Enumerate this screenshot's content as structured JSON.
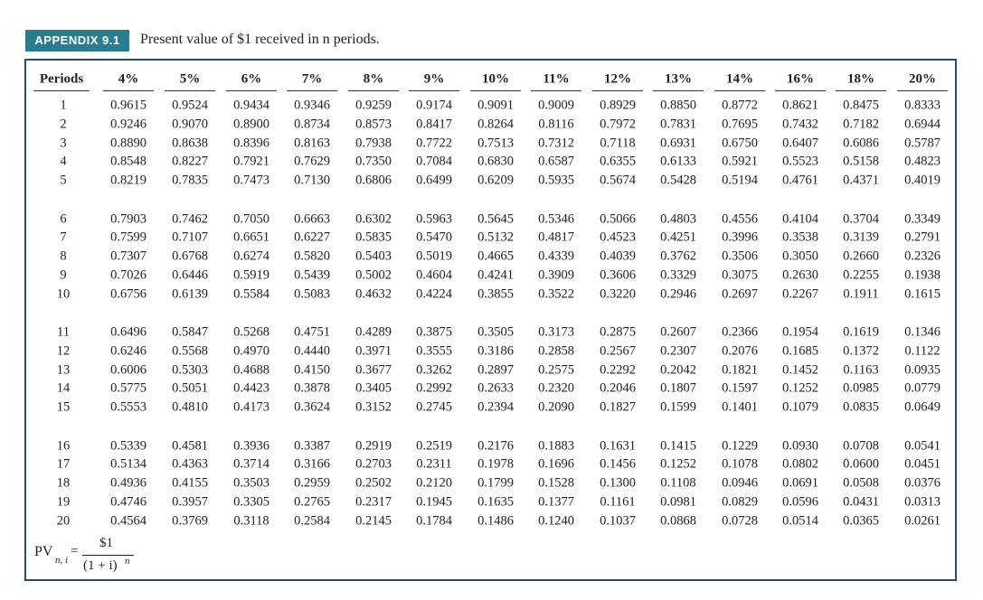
{
  "header": {
    "label": "APPENDIX 9.1",
    "title": "Present value of $1 received in n periods."
  },
  "table": {
    "columns": [
      "Periods",
      "4%",
      "5%",
      "6%",
      "7%",
      "8%",
      "9%",
      "10%",
      "11%",
      "12%",
      "13%",
      "14%",
      "16%",
      "18%",
      "20%"
    ],
    "rows": [
      [
        "1",
        "0.9615",
        "0.9524",
        "0.9434",
        "0.9346",
        "0.9259",
        "0.9174",
        "0.9091",
        "0.9009",
        "0.8929",
        "0.8850",
        "0.8772",
        "0.8621",
        "0.8475",
        "0.8333"
      ],
      [
        "2",
        "0.9246",
        "0.9070",
        "0.8900",
        "0.8734",
        "0.8573",
        "0.8417",
        "0.8264",
        "0.8116",
        "0.7972",
        "0.7831",
        "0.7695",
        "0.7432",
        "0.7182",
        "0.6944"
      ],
      [
        "3",
        "0.8890",
        "0.8638",
        "0.8396",
        "0.8163",
        "0.7938",
        "0.7722",
        "0.7513",
        "0.7312",
        "0.7118",
        "0.6931",
        "0.6750",
        "0.6407",
        "0.6086",
        "0.5787"
      ],
      [
        "4",
        "0.8548",
        "0.8227",
        "0.7921",
        "0.7629",
        "0.7350",
        "0.7084",
        "0.6830",
        "0.6587",
        "0.6355",
        "0.6133",
        "0.5921",
        "0.5523",
        "0.5158",
        "0.4823"
      ],
      [
        "5",
        "0.8219",
        "0.7835",
        "0.7473",
        "0.7130",
        "0.6806",
        "0.6499",
        "0.6209",
        "0.5935",
        "0.5674",
        "0.5428",
        "0.5194",
        "0.4761",
        "0.4371",
        "0.4019"
      ],
      [
        "6",
        "0.7903",
        "0.7462",
        "0.7050",
        "0.6663",
        "0.6302",
        "0.5963",
        "0.5645",
        "0.5346",
        "0.5066",
        "0.4803",
        "0.4556",
        "0.4104",
        "0.3704",
        "0.3349"
      ],
      [
        "7",
        "0.7599",
        "0.7107",
        "0.6651",
        "0.6227",
        "0.5835",
        "0.5470",
        "0.5132",
        "0.4817",
        "0.4523",
        "0.4251",
        "0.3996",
        "0.3538",
        "0.3139",
        "0.2791"
      ],
      [
        "8",
        "0.7307",
        "0.6768",
        "0.6274",
        "0.5820",
        "0.5403",
        "0.5019",
        "0.4665",
        "0.4339",
        "0.4039",
        "0.3762",
        "0.3506",
        "0.3050",
        "0.2660",
        "0.2326"
      ],
      [
        "9",
        "0.7026",
        "0.6446",
        "0.5919",
        "0.5439",
        "0.5002",
        "0.4604",
        "0.4241",
        "0.3909",
        "0.3606",
        "0.3329",
        "0.3075",
        "0.2630",
        "0.2255",
        "0.1938"
      ],
      [
        "10",
        "0.6756",
        "0.6139",
        "0.5584",
        "0.5083",
        "0.4632",
        "0.4224",
        "0.3855",
        "0.3522",
        "0.3220",
        "0.2946",
        "0.2697",
        "0.2267",
        "0.1911",
        "0.1615"
      ],
      [
        "11",
        "0.6496",
        "0.5847",
        "0.5268",
        "0.4751",
        "0.4289",
        "0.3875",
        "0.3505",
        "0.3173",
        "0.2875",
        "0.2607",
        "0.2366",
        "0.1954",
        "0.1619",
        "0.1346"
      ],
      [
        "12",
        "0.6246",
        "0.5568",
        "0.4970",
        "0.4440",
        "0.3971",
        "0.3555",
        "0.3186",
        "0.2858",
        "0.2567",
        "0.2307",
        "0.2076",
        "0.1685",
        "0.1372",
        "0.1122"
      ],
      [
        "13",
        "0.6006",
        "0.5303",
        "0.4688",
        "0.4150",
        "0.3677",
        "0.3262",
        "0.2897",
        "0.2575",
        "0.2292",
        "0.2042",
        "0.1821",
        "0.1452",
        "0.1163",
        "0.0935"
      ],
      [
        "14",
        "0.5775",
        "0.5051",
        "0.4423",
        "0.3878",
        "0.3405",
        "0.2992",
        "0.2633",
        "0.2320",
        "0.2046",
        "0.1807",
        "0.1597",
        "0.1252",
        "0.0985",
        "0.0779"
      ],
      [
        "15",
        "0.5553",
        "0.4810",
        "0.4173",
        "0.3624",
        "0.3152",
        "0.2745",
        "0.2394",
        "0.2090",
        "0.1827",
        "0.1599",
        "0.1401",
        "0.1079",
        "0.0835",
        "0.0649"
      ],
      [
        "16",
        "0.5339",
        "0.4581",
        "0.3936",
        "0.3387",
        "0.2919",
        "0.2519",
        "0.2176",
        "0.1883",
        "0.1631",
        "0.1415",
        "0.1229",
        "0.0930",
        "0.0708",
        "0.0541"
      ],
      [
        "17",
        "0.5134",
        "0.4363",
        "0.3714",
        "0.3166",
        "0.2703",
        "0.2311",
        "0.1978",
        "0.1696",
        "0.1456",
        "0.1252",
        "0.1078",
        "0.0802",
        "0.0600",
        "0.0451"
      ],
      [
        "18",
        "0.4936",
        "0.4155",
        "0.3503",
        "0.2959",
        "0.2502",
        "0.2120",
        "0.1799",
        "0.1528",
        "0.1300",
        "0.1108",
        "0.0946",
        "0.0691",
        "0.0508",
        "0.0376"
      ],
      [
        "19",
        "0.4746",
        "0.3957",
        "0.3305",
        "0.2765",
        "0.2317",
        "0.1945",
        "0.1635",
        "0.1377",
        "0.1161",
        "0.0981",
        "0.0829",
        "0.0596",
        "0.0431",
        "0.0313"
      ],
      [
        "20",
        "0.4564",
        "0.3769",
        "0.3118",
        "0.2584",
        "0.2145",
        "0.1784",
        "0.1486",
        "0.1240",
        "0.1037",
        "0.0868",
        "0.0728",
        "0.0514",
        "0.0365",
        "0.0261"
      ]
    ]
  },
  "formula": {
    "lhs": "PV",
    "subscript": "n, i",
    "equals": "=",
    "numerator": "$1",
    "denominator": "(1 + i)",
    "exponent": "n"
  }
}
